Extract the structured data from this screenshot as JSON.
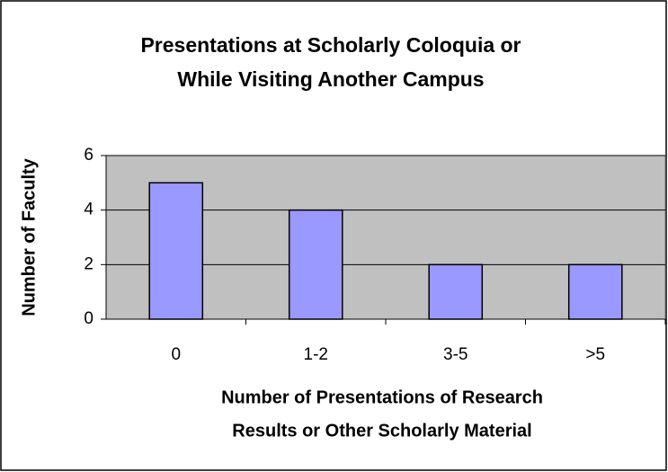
{
  "chart_data": {
    "type": "bar",
    "title": [
      "Presentations at Scholarly Coloquia or",
      "While Visiting Another Campus"
    ],
    "x_label": [
      "Number of Presentations of Research",
      "Results or Other Scholarly Material"
    ],
    "y_label": "Number of Faculty",
    "categories": [
      "0",
      "1-2",
      "3-5",
      ">5"
    ],
    "values": [
      5,
      4,
      2,
      2
    ],
    "color": "#9999ff",
    "ylim": [
      0,
      6
    ],
    "yticks": [
      0,
      2,
      4,
      6
    ],
    "grid": true
  }
}
